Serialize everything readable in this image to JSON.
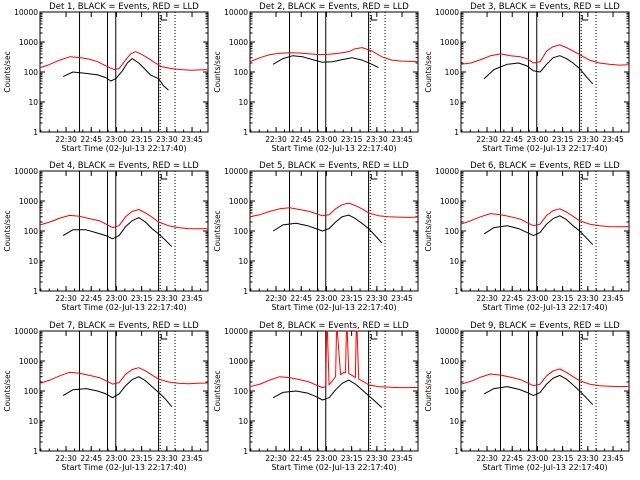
{
  "figure": {
    "background": "#ffffff",
    "axis_color": "#000000",
    "events_color": "#000000",
    "lld_color": "#ff0000"
  },
  "chart_data": [
    {
      "type": "line",
      "y_scale": "log",
      "title": "Det 1, BLACK = Events, RED = LLD",
      "xlabel": "Start Time (02-Jul-13 22:17:40)",
      "ylabel": "Counts/sec",
      "x_ticks": [
        "22:30",
        "22:45",
        "23:00",
        "23:15",
        "23:30",
        "23:45"
      ],
      "y_ticks": [
        "1",
        "10",
        "100",
        "1000",
        "10000"
      ],
      "ylim": [
        1,
        10000
      ],
      "x_range_min": [
        0,
        102
      ],
      "solid_markers_min": [
        24,
        41,
        46,
        72
      ],
      "dotted_markers_min": [
        73,
        82
      ],
      "series": [
        {
          "name": "Events",
          "color": "#000000",
          "x_min": [
            14,
            20,
            28,
            35,
            40,
            43,
            46,
            50,
            53,
            56,
            60,
            64,
            67,
            72,
            75,
            78
          ],
          "y": [
            70,
            100,
            90,
            80,
            65,
            50,
            60,
            110,
            200,
            280,
            200,
            120,
            80,
            60,
            35,
            25
          ]
        },
        {
          "name": "LLD",
          "color": "#ff0000",
          "x_min": [
            0,
            5,
            12,
            18,
            25,
            30,
            35,
            40,
            45,
            48,
            52,
            55,
            58,
            62,
            66,
            70,
            74,
            80,
            86,
            92,
            98,
            102
          ],
          "y": [
            140,
            170,
            250,
            320,
            300,
            270,
            220,
            160,
            120,
            130,
            250,
            400,
            480,
            380,
            280,
            200,
            150,
            130,
            120,
            115,
            118,
            120
          ]
        }
      ]
    },
    {
      "type": "line",
      "y_scale": "log",
      "title": "Det 2, BLACK = Events, RED = LLD",
      "xlabel": "Start Time (02-Jul-13 22:17:40)",
      "ylabel": "Counts/sec",
      "x_ticks": [
        "22:30",
        "22:45",
        "23:00",
        "23:15",
        "23:30",
        "23:45"
      ],
      "y_ticks": [
        "1",
        "10",
        "100",
        "1000",
        "10000"
      ],
      "ylim": [
        1,
        10000
      ],
      "x_range_min": [
        0,
        102
      ],
      "solid_markers_min": [
        24,
        41,
        46,
        72
      ],
      "dotted_markers_min": [
        73,
        82
      ],
      "series": [
        {
          "name": "Events",
          "color": "#000000",
          "x_min": [
            14,
            20,
            26,
            32,
            38,
            44,
            50,
            56,
            62,
            68,
            74,
            78
          ],
          "y": [
            180,
            280,
            350,
            320,
            260,
            210,
            220,
            260,
            300,
            250,
            180,
            140
          ]
        },
        {
          "name": "LLD",
          "color": "#ff0000",
          "x_min": [
            0,
            6,
            12,
            18,
            24,
            30,
            36,
            42,
            48,
            54,
            60,
            64,
            68,
            74,
            80,
            86,
            92,
            98,
            102
          ],
          "y": [
            220,
            300,
            380,
            420,
            440,
            430,
            400,
            380,
            390,
            420,
            480,
            600,
            650,
            500,
            320,
            250,
            230,
            225,
            220
          ]
        }
      ]
    },
    {
      "type": "line",
      "y_scale": "log",
      "title": "Det 3, BLACK = Events, RED = LLD",
      "xlabel": "Start Time (02-Jul-13 22:17:40)",
      "ylabel": "Counts/sec",
      "x_ticks": [
        "22:30",
        "22:45",
        "23:00",
        "23:15",
        "23:30",
        "23:45"
      ],
      "y_ticks": [
        "1",
        "10",
        "100",
        "1000",
        "10000"
      ],
      "ylim": [
        1,
        10000
      ],
      "x_range_min": [
        0,
        102
      ],
      "solid_markers_min": [
        24,
        41,
        46,
        72
      ],
      "dotted_markers_min": [
        73,
        82
      ],
      "series": [
        {
          "name": "Events",
          "color": "#000000",
          "x_min": [
            14,
            20,
            28,
            35,
            40,
            44,
            48,
            52,
            56,
            60,
            64,
            68,
            72,
            76,
            80
          ],
          "y": [
            60,
            120,
            180,
            200,
            160,
            110,
            100,
            180,
            300,
            350,
            280,
            200,
            130,
            70,
            40
          ]
        },
        {
          "name": "LLD",
          "color": "#ff0000",
          "x_min": [
            0,
            6,
            12,
            18,
            24,
            30,
            36,
            40,
            44,
            48,
            52,
            56,
            60,
            64,
            68,
            72,
            78,
            84,
            90,
            96,
            102
          ],
          "y": [
            180,
            200,
            260,
            350,
            400,
            350,
            320,
            280,
            200,
            220,
            500,
            700,
            800,
            650,
            500,
            380,
            250,
            200,
            180,
            170,
            175
          ]
        }
      ]
    },
    {
      "type": "line",
      "y_scale": "log",
      "title": "Det 4, BLACK = Events, RED = LLD",
      "xlabel": "Start Time (02-Jul-13 22:17:40)",
      "ylabel": "Counts/sec",
      "x_ticks": [
        "22:30",
        "22:45",
        "23:00",
        "23:15",
        "23:30",
        "23:45"
      ],
      "y_ticks": [
        "1",
        "10",
        "100",
        "1000",
        "10000"
      ],
      "ylim": [
        1,
        10000
      ],
      "x_range_min": [
        0,
        102
      ],
      "solid_markers_min": [
        24,
        41,
        46,
        72
      ],
      "dotted_markers_min": [
        73,
        82
      ],
      "series": [
        {
          "name": "Events",
          "color": "#000000",
          "x_min": [
            14,
            20,
            28,
            35,
            40,
            44,
            48,
            52,
            56,
            60,
            64,
            68,
            72,
            76,
            80
          ],
          "y": [
            70,
            110,
            110,
            85,
            70,
            55,
            70,
            140,
            220,
            280,
            200,
            120,
            80,
            50,
            30
          ]
        },
        {
          "name": "LLD",
          "color": "#ff0000",
          "x_min": [
            0,
            6,
            12,
            18,
            24,
            30,
            36,
            40,
            44,
            48,
            52,
            56,
            60,
            64,
            68,
            72,
            78,
            84,
            90,
            96,
            102
          ],
          "y": [
            160,
            200,
            270,
            330,
            310,
            260,
            220,
            170,
            130,
            150,
            300,
            450,
            520,
            400,
            290,
            200,
            150,
            130,
            120,
            118,
            120
          ]
        }
      ]
    },
    {
      "type": "line",
      "y_scale": "log",
      "title": "Det 5, BLACK = Events, RED = LLD",
      "xlabel": "Start Time (02-Jul-13 22:17:40)",
      "ylabel": "Counts/sec",
      "x_ticks": [
        "22:30",
        "22:45",
        "23:00",
        "23:15",
        "23:30",
        "23:45"
      ],
      "y_ticks": [
        "1",
        "10",
        "100",
        "1000",
        "10000"
      ],
      "ylim": [
        1,
        10000
      ],
      "x_range_min": [
        0,
        102
      ],
      "solid_markers_min": [
        24,
        41,
        46,
        72
      ],
      "dotted_markers_min": [
        73,
        82
      ],
      "series": [
        {
          "name": "Events",
          "color": "#000000",
          "x_min": [
            14,
            20,
            28,
            35,
            40,
            44,
            48,
            52,
            56,
            60,
            64,
            68,
            72,
            76,
            80
          ],
          "y": [
            100,
            160,
            180,
            150,
            120,
            100,
            120,
            200,
            300,
            340,
            260,
            180,
            120,
            70,
            40
          ]
        },
        {
          "name": "LLD",
          "color": "#ff0000",
          "x_min": [
            0,
            6,
            12,
            18,
            24,
            30,
            36,
            40,
            44,
            48,
            52,
            56,
            60,
            64,
            68,
            72,
            78,
            84,
            90,
            96,
            102
          ],
          "y": [
            300,
            350,
            450,
            550,
            600,
            520,
            450,
            380,
            320,
            350,
            550,
            750,
            850,
            700,
            550,
            400,
            320,
            300,
            290,
            285,
            290
          ]
        }
      ]
    },
    {
      "type": "line",
      "y_scale": "log",
      "title": "Det 6, BLACK = Events, RED = LLD",
      "xlabel": "Start Time (02-Jul-13 22:17:40)",
      "ylabel": "Counts/sec",
      "x_ticks": [
        "22:30",
        "22:45",
        "23:00",
        "23:15",
        "23:30",
        "23:45"
      ],
      "y_ticks": [
        "1",
        "10",
        "100",
        "1000",
        "10000"
      ],
      "ylim": [
        1,
        10000
      ],
      "x_range_min": [
        0,
        102
      ],
      "solid_markers_min": [
        24,
        41,
        46,
        72
      ],
      "dotted_markers_min": [
        73,
        82
      ],
      "series": [
        {
          "name": "Events",
          "color": "#000000",
          "x_min": [
            14,
            20,
            28,
            35,
            40,
            44,
            48,
            52,
            56,
            60,
            64,
            68,
            72,
            76,
            80
          ],
          "y": [
            80,
            130,
            150,
            120,
            90,
            70,
            90,
            170,
            260,
            320,
            240,
            150,
            100,
            60,
            35
          ]
        },
        {
          "name": "LLD",
          "color": "#ff0000",
          "x_min": [
            0,
            6,
            12,
            18,
            24,
            30,
            36,
            40,
            44,
            48,
            52,
            56,
            60,
            64,
            68,
            72,
            78,
            84,
            90,
            96,
            102
          ],
          "y": [
            170,
            220,
            300,
            380,
            350,
            300,
            250,
            190,
            150,
            170,
            330,
            480,
            550,
            430,
            310,
            220,
            170,
            150,
            140,
            138,
            140
          ]
        }
      ]
    },
    {
      "type": "line",
      "y_scale": "log",
      "title": "Det 7, BLACK = Events, RED = LLD",
      "xlabel": "Start Time (02-Jul-13 22:17:40)",
      "ylabel": "Counts/sec",
      "x_ticks": [
        "22:30",
        "22:45",
        "23:00",
        "23:15",
        "23:30",
        "23:45"
      ],
      "y_ticks": [
        "1",
        "10",
        "100",
        "1000",
        "10000"
      ],
      "ylim": [
        1,
        10000
      ],
      "x_range_min": [
        0,
        102
      ],
      "solid_markers_min": [
        24,
        41,
        46,
        72
      ],
      "dotted_markers_min": [
        73,
        82
      ],
      "series": [
        {
          "name": "Events",
          "color": "#000000",
          "x_min": [
            14,
            20,
            28,
            35,
            40,
            44,
            48,
            52,
            56,
            60,
            64,
            68,
            72,
            76,
            80
          ],
          "y": [
            70,
            110,
            120,
            100,
            80,
            60,
            80,
            150,
            240,
            300,
            220,
            140,
            90,
            55,
            30
          ]
        },
        {
          "name": "LLD",
          "color": "#ff0000",
          "x_min": [
            0,
            6,
            12,
            18,
            24,
            30,
            36,
            40,
            44,
            48,
            52,
            56,
            60,
            64,
            68,
            72,
            78,
            84,
            90,
            96,
            102
          ],
          "y": [
            180,
            230,
            320,
            420,
            390,
            330,
            280,
            220,
            170,
            190,
            360,
            520,
            600,
            470,
            340,
            250,
            200,
            180,
            175,
            180,
            185
          ]
        }
      ]
    },
    {
      "type": "line",
      "y_scale": "log",
      "title": "Det 8, BLACK = Events, RED = LLD",
      "xlabel": "Start Time (02-Jul-13 22:17:40)",
      "ylabel": "Counts/sec",
      "x_ticks": [
        "22:30",
        "22:45",
        "23:00",
        "23:15",
        "23:30",
        "23:45"
      ],
      "y_ticks": [
        "1",
        "10",
        "100",
        "1000",
        "10000"
      ],
      "ylim": [
        1,
        10000
      ],
      "x_range_min": [
        0,
        102
      ],
      "solid_markers_min": [
        24,
        41,
        46,
        72
      ],
      "dotted_markers_min": [
        73,
        82
      ],
      "series": [
        {
          "name": "Events",
          "color": "#000000",
          "x_min": [
            14,
            20,
            28,
            35,
            40,
            44,
            48,
            52,
            56,
            60,
            64,
            68,
            72,
            76,
            80
          ],
          "y": [
            60,
            90,
            100,
            85,
            65,
            50,
            60,
            110,
            180,
            230,
            170,
            110,
            70,
            45,
            28
          ]
        },
        {
          "name": "LLD",
          "color": "#ff0000",
          "x_min": [
            0,
            6,
            12,
            18,
            24,
            30,
            36,
            40,
            44,
            46,
            46.5,
            47,
            48,
            50,
            52,
            52.5,
            53,
            55,
            57,
            58,
            58.5,
            59,
            60,
            62,
            64,
            64.5,
            65,
            66,
            70,
            72,
            78,
            84,
            90,
            96,
            102
          ],
          "y": [
            140,
            170,
            230,
            300,
            280,
            240,
            200,
            160,
            130,
            140,
            10000,
            10000,
            160,
            220,
            300,
            10000,
            10000,
            350,
            420,
            400,
            10000,
            10000,
            380,
            330,
            280,
            10000,
            10000,
            250,
            190,
            160,
            140,
            135,
            130,
            130,
            132
          ]
        }
      ]
    },
    {
      "type": "line",
      "y_scale": "log",
      "title": "Det 9, BLACK = Events, RED = LLD",
      "xlabel": "Start Time (02-Jul-13 22:17:40)",
      "ylabel": "Counts/sec",
      "x_ticks": [
        "22:30",
        "22:45",
        "23:00",
        "23:15",
        "23:30",
        "23:45"
      ],
      "y_ticks": [
        "1",
        "10",
        "100",
        "1000",
        "10000"
      ],
      "ylim": [
        1,
        10000
      ],
      "x_range_min": [
        0,
        102
      ],
      "solid_markers_min": [
        24,
        41,
        46,
        72
      ],
      "dotted_markers_min": [
        73,
        82
      ],
      "series": [
        {
          "name": "Events",
          "color": "#000000",
          "x_min": [
            14,
            20,
            28,
            35,
            40,
            44,
            48,
            52,
            56,
            60,
            64,
            68,
            72,
            76,
            80
          ],
          "y": [
            80,
            120,
            140,
            115,
            90,
            70,
            90,
            170,
            270,
            330,
            250,
            160,
            100,
            60,
            35
          ]
        },
        {
          "name": "LLD",
          "color": "#ff0000",
          "x_min": [
            0,
            6,
            12,
            18,
            24,
            30,
            36,
            40,
            44,
            48,
            52,
            56,
            60,
            64,
            68,
            72,
            78,
            84,
            90,
            96,
            102
          ],
          "y": [
            170,
            210,
            290,
            370,
            340,
            290,
            240,
            190,
            150,
            170,
            320,
            470,
            540,
            420,
            300,
            220,
            170,
            150,
            145,
            140,
            142
          ]
        }
      ]
    }
  ]
}
